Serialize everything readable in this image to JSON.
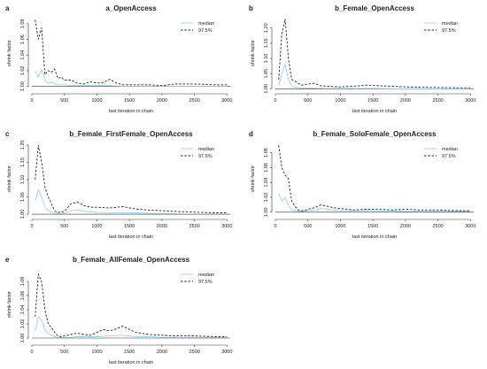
{
  "colors": {
    "median": "#7fc8e8",
    "q975": "#222222",
    "axis": "#333333",
    "baseline": "#333333"
  },
  "chart_data": [
    {
      "panel_label": "a",
      "type": "line",
      "title": "a_OpenAccess",
      "xlabel": "last iteration in chain",
      "ylabel": "shrink factor",
      "xlim": [
        0,
        3050
      ],
      "ylim": [
        0.995,
        1.09
      ],
      "xticks": [
        0,
        500,
        1000,
        1500,
        2000,
        2500,
        3000
      ],
      "yticks": [
        1.0,
        1.02,
        1.04,
        1.06,
        1.08
      ],
      "ytick_labels": [
        "1.00",
        "1.02",
        "1.04",
        "1.06",
        "1.08"
      ],
      "legend": {
        "position": "top-right",
        "entries": [
          "median",
          "97.5%"
        ]
      },
      "series": [
        {
          "name": "median",
          "style": "solid",
          "x": [
            50,
            100,
            150,
            200,
            250,
            300,
            350,
            400,
            500,
            600,
            700,
            800,
            900,
            1000,
            1200,
            1400,
            1600,
            2000,
            2500,
            3000
          ],
          "y": [
            1.02,
            1.012,
            1.022,
            1.008,
            1.004,
            1.006,
            1.003,
            1.002,
            1.002,
            1.001,
            1.001,
            1.001,
            1.001,
            1.001,
            1.001,
            1.0,
            1.0,
            1.0,
            1.0,
            1.0
          ]
        },
        {
          "name": "97.5%",
          "style": "dashed",
          "x": [
            50,
            100,
            150,
            200,
            250,
            300,
            350,
            400,
            450,
            500,
            600,
            700,
            800,
            900,
            1000,
            1100,
            1200,
            1300,
            1400,
            1500,
            1600,
            1800,
            2000,
            2200,
            2500,
            2800,
            3000
          ],
          "y": [
            1.085,
            1.06,
            1.075,
            1.015,
            1.02,
            1.018,
            1.022,
            1.01,
            1.012,
            1.008,
            1.008,
            1.004,
            1.003,
            1.006,
            1.004,
            1.005,
            1.009,
            1.004,
            1.002,
            1.002,
            1.002,
            1.002,
            1.001,
            1.003,
            1.003,
            1.002,
            1.002
          ]
        }
      ]
    },
    {
      "panel_label": "b",
      "type": "line",
      "title": "b_Female_OpenAccess",
      "xlabel": "last iteration in chain",
      "ylabel": "shrink factor",
      "xlim": [
        0,
        3050
      ],
      "ylim": [
        0.995,
        1.24
      ],
      "xticks": [
        0,
        500,
        1000,
        1500,
        2000,
        2500,
        3000
      ],
      "yticks": [
        1.0,
        1.05,
        1.1,
        1.15,
        1.2
      ],
      "ytick_labels": [
        "1.00",
        "1.05",
        "1.10",
        "1.15",
        "1.20"
      ],
      "legend": {
        "position": "top-right",
        "entries": [
          "median",
          "97.5%"
        ]
      },
      "series": [
        {
          "name": "median",
          "style": "solid",
          "x": [
            50,
            100,
            150,
            200,
            250,
            300,
            350,
            400,
            500,
            600,
            800,
            1000,
            1500,
            2000,
            2500,
            3000
          ],
          "y": [
            1.01,
            1.05,
            1.08,
            1.03,
            1.01,
            1.005,
            1.004,
            1.003,
            1.002,
            1.002,
            1.001,
            1.001,
            1.001,
            1.0,
            1.0,
            1.0
          ]
        },
        {
          "name": "97.5%",
          "style": "dashed",
          "x": [
            50,
            100,
            150,
            200,
            250,
            300,
            350,
            400,
            500,
            600,
            700,
            800,
            1000,
            1200,
            1400,
            1600,
            1800,
            2000,
            2200,
            2500,
            2800,
            3000
          ],
          "y": [
            1.03,
            1.18,
            1.23,
            1.1,
            1.03,
            1.025,
            1.018,
            1.012,
            1.015,
            1.018,
            1.01,
            1.008,
            1.006,
            1.008,
            1.012,
            1.01,
            1.008,
            1.006,
            1.005,
            1.004,
            1.003,
            1.003
          ]
        }
      ]
    },
    {
      "panel_label": "c",
      "type": "line",
      "title": "b_Female_FirstFemale_OpenAccess",
      "xlabel": "last iteration in chain",
      "ylabel": "shrink factor",
      "xlim": [
        0,
        3050
      ],
      "ylim": [
        0.995,
        1.21
      ],
      "xticks": [
        0,
        500,
        1000,
        1500,
        2000,
        2500,
        3000
      ],
      "yticks": [
        1.0,
        1.05,
        1.1,
        1.15,
        1.2
      ],
      "ytick_labels": [
        "1.00",
        "1.05",
        "1.10",
        "1.15",
        "1.20"
      ],
      "legend": {
        "position": "top-right",
        "entries": [
          "median",
          "97.5%"
        ]
      },
      "series": [
        {
          "name": "median",
          "style": "solid",
          "x": [
            50,
            100,
            150,
            200,
            250,
            300,
            400,
            500,
            600,
            700,
            800,
            1000,
            1500,
            2000,
            2500,
            3000
          ],
          "y": [
            1.04,
            1.07,
            1.05,
            1.02,
            1.01,
            1.005,
            1.002,
            1.003,
            1.01,
            1.012,
            1.008,
            1.005,
            1.004,
            1.002,
            1.001,
            1.001
          ]
        },
        {
          "name": "97.5%",
          "style": "dashed",
          "x": [
            50,
            100,
            150,
            200,
            250,
            300,
            350,
            400,
            500,
            600,
            700,
            800,
            900,
            1000,
            1200,
            1400,
            1600,
            1800,
            2000,
            2200,
            2500,
            2800,
            3000
          ],
          "y": [
            1.1,
            1.2,
            1.15,
            1.08,
            1.05,
            1.03,
            1.01,
            1.005,
            1.008,
            1.03,
            1.035,
            1.025,
            1.02,
            1.02,
            1.018,
            1.022,
            1.015,
            1.012,
            1.01,
            1.008,
            1.006,
            1.004,
            1.004
          ]
        }
      ]
    },
    {
      "panel_label": "d",
      "type": "line",
      "title": "b_Female_SoloFemale_OpenAccess",
      "xlabel": "last iteration in chain",
      "ylabel": "shrink factor",
      "xlim": [
        0,
        3050
      ],
      "ylim": [
        0.995,
        1.095
      ],
      "xticks": [
        0,
        500,
        1000,
        1500,
        2000,
        2500,
        3000
      ],
      "yticks": [
        1.0,
        1.02,
        1.04,
        1.06,
        1.08
      ],
      "ytick_labels": [
        "1.00",
        "1.02",
        "1.04",
        "1.06",
        "1.08"
      ],
      "legend": {
        "position": "top-right",
        "entries": [
          "median",
          "97.5%"
        ]
      },
      "series": [
        {
          "name": "median",
          "style": "solid",
          "x": [
            50,
            100,
            150,
            200,
            250,
            300,
            350,
            400,
            500,
            600,
            700,
            800,
            900,
            1000,
            1500,
            2000,
            2500,
            3000
          ],
          "y": [
            1.025,
            1.015,
            1.02,
            1.01,
            1.004,
            1.002,
            1.001,
            1.001,
            1.002,
            1.003,
            1.005,
            1.004,
            1.003,
            1.002,
            1.002,
            1.001,
            1.001,
            1.001
          ]
        },
        {
          "name": "97.5%",
          "style": "dashed",
          "x": [
            50,
            100,
            150,
            200,
            250,
            300,
            350,
            400,
            450,
            500,
            600,
            700,
            800,
            900,
            1000,
            1200,
            1400,
            1600,
            1800,
            2000,
            2200,
            2500,
            2800,
            3000
          ],
          "y": [
            1.09,
            1.06,
            1.05,
            1.045,
            1.015,
            1.008,
            1.003,
            1.002,
            1.002,
            1.004,
            1.006,
            1.01,
            1.008,
            1.006,
            1.005,
            1.003,
            1.004,
            1.004,
            1.003,
            1.004,
            1.003,
            1.003,
            1.002,
            1.002
          ]
        }
      ]
    },
    {
      "panel_label": "e",
      "type": "line",
      "title": "b_Female_AllFemale_OpenAccess",
      "xlabel": "last iteration in chain",
      "ylabel": "shrink factor",
      "xlim": [
        0,
        3050
      ],
      "ylim": [
        0.995,
        1.1
      ],
      "xticks": [
        0,
        500,
        1000,
        1500,
        2000,
        2500,
        3000
      ],
      "yticks": [
        1.0,
        1.02,
        1.04,
        1.06,
        1.08
      ],
      "ytick_labels": [
        "1.00",
        "1.02",
        "1.04",
        "1.06",
        "1.08"
      ],
      "legend": {
        "position": "top-right",
        "entries": [
          "median",
          "97.5%"
        ]
      },
      "series": [
        {
          "name": "median",
          "style": "solid",
          "x": [
            50,
            100,
            150,
            200,
            250,
            300,
            350,
            400,
            500,
            600,
            700,
            800,
            900,
            1000,
            1200,
            1400,
            1600,
            1800,
            2000,
            2500,
            3000
          ],
          "y": [
            1.01,
            1.03,
            1.025,
            1.012,
            1.006,
            1.004,
            1.002,
            1.001,
            1.001,
            1.001,
            1.002,
            1.002,
            1.002,
            1.002,
            1.003,
            1.004,
            1.002,
            1.002,
            1.001,
            1.001,
            1.001
          ]
        },
        {
          "name": "97.5%",
          "style": "dashed",
          "x": [
            50,
            100,
            150,
            200,
            250,
            300,
            350,
            400,
            450,
            500,
            600,
            700,
            800,
            900,
            1000,
            1100,
            1200,
            1300,
            1400,
            1500,
            1600,
            1800,
            2000,
            2200,
            2500,
            2800,
            3000
          ],
          "y": [
            1.03,
            1.09,
            1.08,
            1.04,
            1.02,
            1.015,
            1.008,
            1.003,
            1.002,
            1.003,
            1.005,
            1.007,
            1.005,
            1.004,
            1.008,
            1.012,
            1.01,
            1.013,
            1.017,
            1.012,
            1.008,
            1.005,
            1.004,
            1.003,
            1.003,
            1.002,
            1.002
          ]
        }
      ]
    }
  ]
}
